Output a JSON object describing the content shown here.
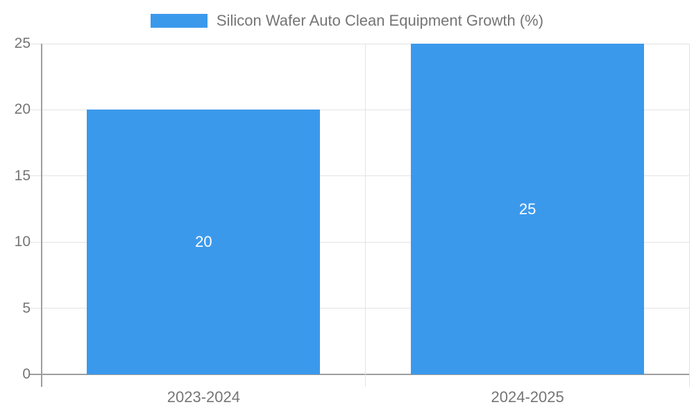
{
  "chart_data": {
    "type": "bar",
    "title": "Silicon Wafer Auto Clean Equipment Growth (%)",
    "categories": [
      "2023-2024",
      "2024-2025"
    ],
    "series": [
      {
        "name": "Silicon Wafer Auto Clean Equipment Growth (%)",
        "values": [
          20,
          25
        ]
      }
    ],
    "data_labels": [
      "20",
      "25"
    ],
    "ylim": [
      0,
      25
    ],
    "yticks": [
      0,
      5,
      10,
      15,
      20,
      25
    ],
    "grid": true,
    "legend_position": "top-center",
    "xlabel": "",
    "ylabel": ""
  },
  "legend": {
    "label": "Silicon Wafer Auto Clean Equipment Growth (%)"
  },
  "colors": {
    "bar": "#3B99EC",
    "axis_line": "#9E9E9E",
    "grid_line": "#E3E3E3",
    "tick_text": "#757575",
    "data_label_text": "#FFFFFF",
    "background": "#FFFFFF"
  }
}
